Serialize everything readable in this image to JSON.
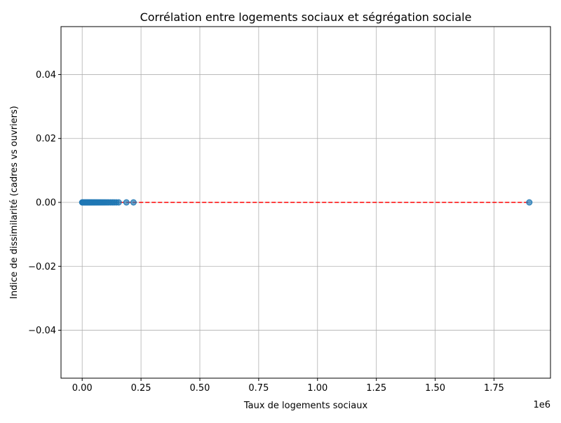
{
  "chart_data": {
    "type": "scatter",
    "title": "Corrélation entre logements sociaux et ségrégation sociale",
    "xlabel": "Taux de logements sociaux",
    "ylabel": "Indice de dissimilarité (cadres vs ouvriers)",
    "x_offset_label": "1e6",
    "xlim": [
      -90000,
      1990000
    ],
    "ylim": [
      -0.055,
      0.055
    ],
    "x_ticks": [
      0,
      250000,
      500000,
      750000,
      1000000,
      1250000,
      1500000,
      1750000
    ],
    "x_tick_labels": [
      "0.00",
      "0.25",
      "0.50",
      "0.75",
      "1.00",
      "1.25",
      "1.50",
      "1.75"
    ],
    "y_ticks": [
      -0.04,
      -0.02,
      0.0,
      0.02,
      0.04
    ],
    "y_tick_labels": [
      "−0.04",
      "−0.02",
      "0.00",
      "0.02",
      "0.04"
    ],
    "grid": true,
    "series": [
      {
        "x": [
          0,
          1500,
          3000,
          5000,
          7000,
          9000,
          11000,
          13000,
          15000,
          17000,
          19000,
          21000,
          23000,
          25000,
          28000,
          31000,
          34000,
          37000,
          40000,
          44000,
          48000,
          52000,
          56000,
          60000,
          65000,
          70000,
          75000,
          80000,
          86000,
          92000,
          98000,
          105000,
          112000,
          120000,
          128000,
          136000,
          145000,
          155000,
          188000,
          218000,
          1900000
        ],
        "y": [
          0,
          0,
          0,
          0,
          0,
          0,
          0,
          0,
          0,
          0,
          0,
          0,
          0,
          0,
          0,
          0,
          0,
          0,
          0,
          0,
          0,
          0,
          0,
          0,
          0,
          0,
          0,
          0,
          0,
          0,
          0,
          0,
          0,
          0,
          0,
          0,
          0,
          0,
          0,
          0,
          0
        ],
        "color": "#1f77b4"
      }
    ],
    "trend_line": {
      "x": [
        0,
        1900000
      ],
      "y": [
        0,
        0
      ],
      "color": "#ff0000",
      "style": "dashed"
    }
  }
}
